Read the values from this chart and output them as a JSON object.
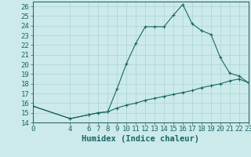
{
  "title": "",
  "xlabel": "Humidex (Indice chaleur)",
  "bg_color": "#cceaea",
  "grid_color": "#aad4d4",
  "line_color": "#1a6666",
  "spine_color": "#336666",
  "xlim": [
    0,
    23
  ],
  "ylim": [
    14,
    26.5
  ],
  "yticks": [
    14,
    15,
    16,
    17,
    18,
    19,
    20,
    21,
    22,
    23,
    24,
    25,
    26
  ],
  "xticks": [
    0,
    4,
    6,
    7,
    8,
    9,
    10,
    11,
    12,
    13,
    14,
    15,
    16,
    17,
    18,
    19,
    20,
    21,
    22,
    23
  ],
  "upper_x": [
    0,
    4,
    6,
    7,
    8,
    9,
    10,
    11,
    12,
    13,
    14,
    15,
    16,
    17,
    18,
    19,
    20,
    21,
    22,
    23
  ],
  "upper_y": [
    15.7,
    14.4,
    14.8,
    15.0,
    15.1,
    17.5,
    20.1,
    22.2,
    23.9,
    23.9,
    23.9,
    25.1,
    26.2,
    24.2,
    23.5,
    23.1,
    20.7,
    19.1,
    18.8,
    18.1
  ],
  "lower_x": [
    0,
    4,
    6,
    7,
    8,
    9,
    10,
    11,
    12,
    13,
    14,
    15,
    16,
    17,
    18,
    19,
    20,
    21,
    22,
    23
  ],
  "lower_y": [
    15.7,
    14.4,
    14.8,
    15.0,
    15.1,
    15.5,
    15.8,
    16.0,
    16.3,
    16.5,
    16.7,
    16.9,
    17.1,
    17.3,
    17.6,
    17.8,
    18.0,
    18.3,
    18.5,
    18.1
  ],
  "tick_fontsize": 6.5,
  "label_fontsize": 7.5
}
